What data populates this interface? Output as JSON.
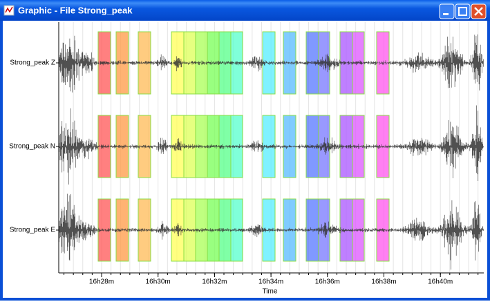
{
  "window": {
    "title": "Graphic - File Strong_peak"
  },
  "plot": {
    "channels": [
      "Strong_peak Z",
      "Strong_peak N",
      "Strong_peak E"
    ],
    "time_ticks": [
      "16h28m",
      "16h30m",
      "16h32m",
      "16h34m",
      "16h36m",
      "16h38m",
      "16h40m"
    ],
    "x_label": "Time"
  }
}
